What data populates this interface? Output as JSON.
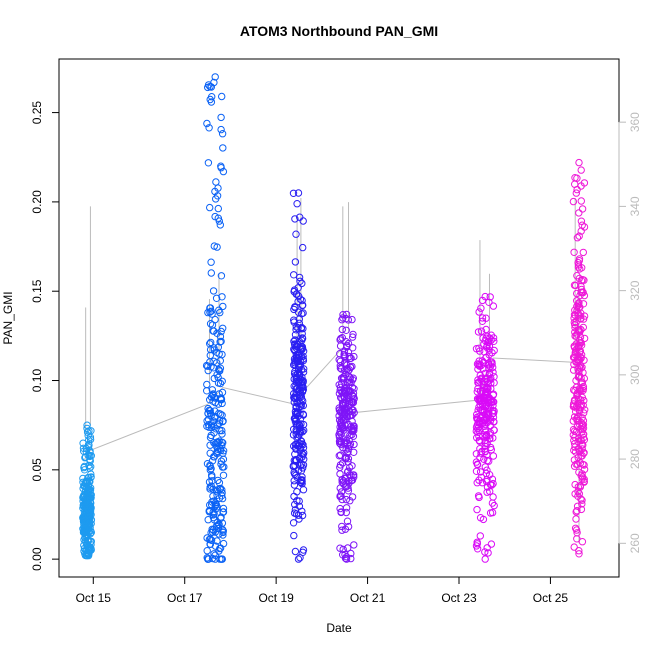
{
  "chart_data": {
    "type": "scatter",
    "title": "ATOM3 Northbound PAN_GMI",
    "xlabel": "Date",
    "ylabel": "PAN_GMI",
    "x_axis": {
      "type": "date",
      "range": [
        "2016-10-14T06:00",
        "2016-10-26T12:00"
      ],
      "tick_labels": [
        "Oct 15",
        "Oct 17",
        "Oct 19",
        "Oct 21",
        "Oct 23",
        "Oct 25"
      ],
      "tick_dates": [
        "2016-10-15",
        "2016-10-17",
        "2016-10-19",
        "2016-10-21",
        "2016-10-23",
        "2016-10-25"
      ]
    },
    "y_axis_left": {
      "range": [
        -0.01,
        0.28
      ],
      "ticks": [
        "0.00",
        "0.05",
        "0.10",
        "0.15",
        "0.20",
        "0.25"
      ]
    },
    "y_axis_right": {
      "range": [
        252,
        375
      ],
      "ticks": [
        "260",
        "280",
        "300",
        "320",
        "340",
        "360"
      ],
      "color": "#bbbbbb"
    },
    "grid": false,
    "legend": "none",
    "marker": "open-circle",
    "series": [
      {
        "x_start": "2016-10-14T18:30",
        "x_end": "2016-10-14T23:00",
        "y_min": 0.002,
        "y_max": 0.075,
        "y_center": 0.025,
        "color": "#1e9bf0"
      },
      {
        "x_start": "2016-10-17T11:30",
        "x_end": "2016-10-17T20:30",
        "y_min": 0.0,
        "y_max": 0.27,
        "y_center": 0.06,
        "color": "#0b62f5"
      },
      {
        "x_start": "2016-10-19T09:00",
        "x_end": "2016-10-19T14:30",
        "y_min": 0.0,
        "y_max": 0.205,
        "y_center": 0.09,
        "color": "#2a1ff2"
      },
      {
        "x_start": "2016-10-20T09:00",
        "x_end": "2016-10-20T17:00",
        "y_min": 0.0,
        "y_max": 0.137,
        "y_center": 0.08,
        "color": "#7f15f7"
      },
      {
        "x_start": "2016-10-23T09:00",
        "x_end": "2016-10-23T18:30",
        "y_min": 0.0,
        "y_max": 0.147,
        "y_center": 0.085,
        "color": "#d90bf7"
      },
      {
        "x_start": "2016-10-25T12:00",
        "x_end": "2016-10-25T18:00",
        "y_min": 0.003,
        "y_max": 0.222,
        "y_center": 0.1,
        "color": "#ee19d8"
      }
    ],
    "secondary_line": {
      "color": "#bbbbbb",
      "points": [
        {
          "x": "2016-10-14T19:30",
          "y": 280
        },
        {
          "x": "2016-10-14T22:00",
          "y": 282
        },
        {
          "x": "2016-10-17T12:00",
          "y": 293
        },
        {
          "x": "2016-10-17T20:00",
          "y": 297
        },
        {
          "x": "2016-10-19T10:00",
          "y": 293
        },
        {
          "x": "2016-10-19T14:00",
          "y": 296
        },
        {
          "x": "2016-10-20T10:00",
          "y": 306
        },
        {
          "x": "2016-10-20T16:00",
          "y": 291
        },
        {
          "x": "2016-10-23T10:00",
          "y": 294
        },
        {
          "x": "2016-10-23T18:00",
          "y": 304
        },
        {
          "x": "2016-10-25T12:00",
          "y": 303
        }
      ],
      "spikes": [
        {
          "x": "2016-10-14T20:00",
          "lo": 286,
          "hi": 316
        },
        {
          "x": "2016-10-14T22:30",
          "lo": 288,
          "hi": 340
        },
        {
          "x": "2016-10-17T13:00",
          "lo": 298,
          "hi": 318
        },
        {
          "x": "2016-10-17T18:00",
          "lo": 300,
          "hi": 324
        },
        {
          "x": "2016-10-19T11:00",
          "lo": 300,
          "hi": 338
        },
        {
          "x": "2016-10-19T13:00",
          "lo": 305,
          "hi": 342
        },
        {
          "x": "2016-10-20T11:00",
          "lo": 308,
          "hi": 340
        },
        {
          "x": "2016-10-20T14:00",
          "lo": 310,
          "hi": 341
        },
        {
          "x": "2016-10-23T11:00",
          "lo": 304,
          "hi": 332
        },
        {
          "x": "2016-10-23T16:00",
          "lo": 306,
          "hi": 324
        },
        {
          "x": "2016-10-25T13:00",
          "lo": 300,
          "hi": 342
        },
        {
          "x": "2016-10-25T15:00",
          "lo": 260,
          "hi": 320
        }
      ]
    }
  }
}
